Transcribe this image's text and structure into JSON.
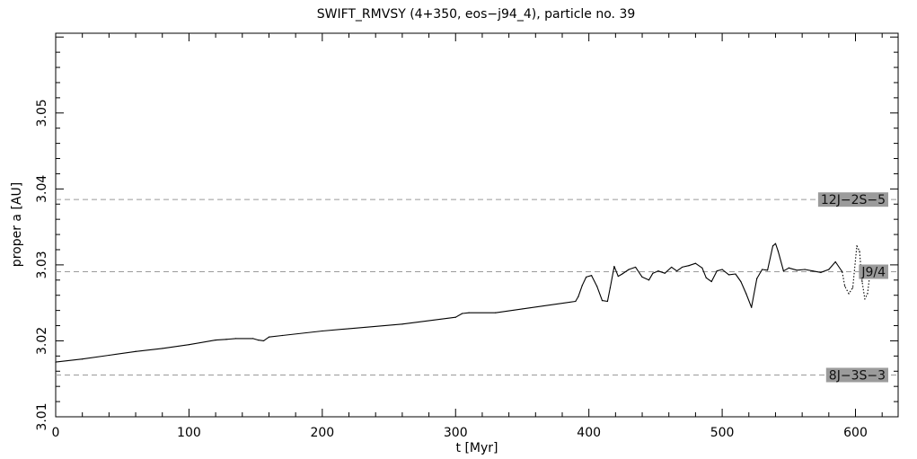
{
  "chart_data": {
    "type": "line",
    "title": "SWIFT_RMVSY (4+350, eos−j94_4), particle no. 39",
    "xlabel": "t [Myr]",
    "ylabel": "proper a [AU]",
    "xlim": [
      0,
      632
    ],
    "ylim": [
      3.01,
      3.0605
    ],
    "x_ticks": [
      0,
      100,
      200,
      300,
      400,
      500,
      600
    ],
    "y_ticks": [
      3.01,
      3.02,
      3.03,
      3.04,
      3.05
    ],
    "grid": false,
    "resonances": [
      {
        "name": "12J−2S−5",
        "a": 3.0386
      },
      {
        "name": "J9/4",
        "a": 3.0291
      },
      {
        "name": "8J−3S−3",
        "a": 3.0155
      }
    ],
    "series": [
      {
        "line_style": "solid",
        "x": [
          0,
          20,
          40,
          60,
          80,
          100,
          120,
          128,
          135,
          148,
          152,
          156,
          160,
          170,
          200,
          220,
          260,
          300,
          305,
          310,
          330,
          350,
          390,
          392,
          395,
          398,
          402,
          406,
          410,
          414,
          416,
          419,
          422,
          425,
          430,
          435,
          440,
          445,
          448,
          452,
          457,
          462,
          466,
          470,
          475,
          480,
          485,
          488,
          492,
          496,
          500,
          505,
          510,
          514,
          518,
          522,
          526,
          530,
          534,
          538,
          540,
          542,
          546,
          550,
          556,
          562,
          568,
          574,
          580,
          585,
          590
        ],
        "y": [
          3.0172,
          3.0176,
          3.0181,
          3.0186,
          3.019,
          3.0195,
          3.0201,
          3.0202,
          3.0203,
          3.0203,
          3.0201,
          3.02,
          3.0205,
          3.0207,
          3.0213,
          3.0216,
          3.0222,
          3.0231,
          3.0236,
          3.0237,
          3.0237,
          3.0242,
          3.0252,
          3.0258,
          3.0273,
          3.0284,
          3.0286,
          3.0272,
          3.0253,
          3.0252,
          3.027,
          3.0298,
          3.0285,
          3.0288,
          3.0294,
          3.0297,
          3.0284,
          3.028,
          3.0289,
          3.0292,
          3.0289,
          3.0297,
          3.0292,
          3.0297,
          3.0299,
          3.0302,
          3.0296,
          3.0283,
          3.0278,
          3.0292,
          3.0294,
          3.0287,
          3.0288,
          3.0278,
          3.0262,
          3.0244,
          3.0282,
          3.0294,
          3.0293,
          3.0325,
          3.0328,
          3.0318,
          3.0292,
          3.0296,
          3.0293,
          3.0294,
          3.0292,
          3.029,
          3.0294,
          3.0304,
          3.0291
        ]
      },
      {
        "line_style": "dotted",
        "x": [
          590,
          592,
          595,
          598,
          601,
          603,
          605,
          607,
          609,
          611,
          613,
          615,
          617,
          620
        ],
        "y": [
          3.0291,
          3.0272,
          3.0262,
          3.027,
          3.0325,
          3.0318,
          3.0278,
          3.0255,
          3.0262,
          3.029,
          3.0293,
          3.029,
          3.0294,
          3.0294
        ]
      }
    ]
  }
}
